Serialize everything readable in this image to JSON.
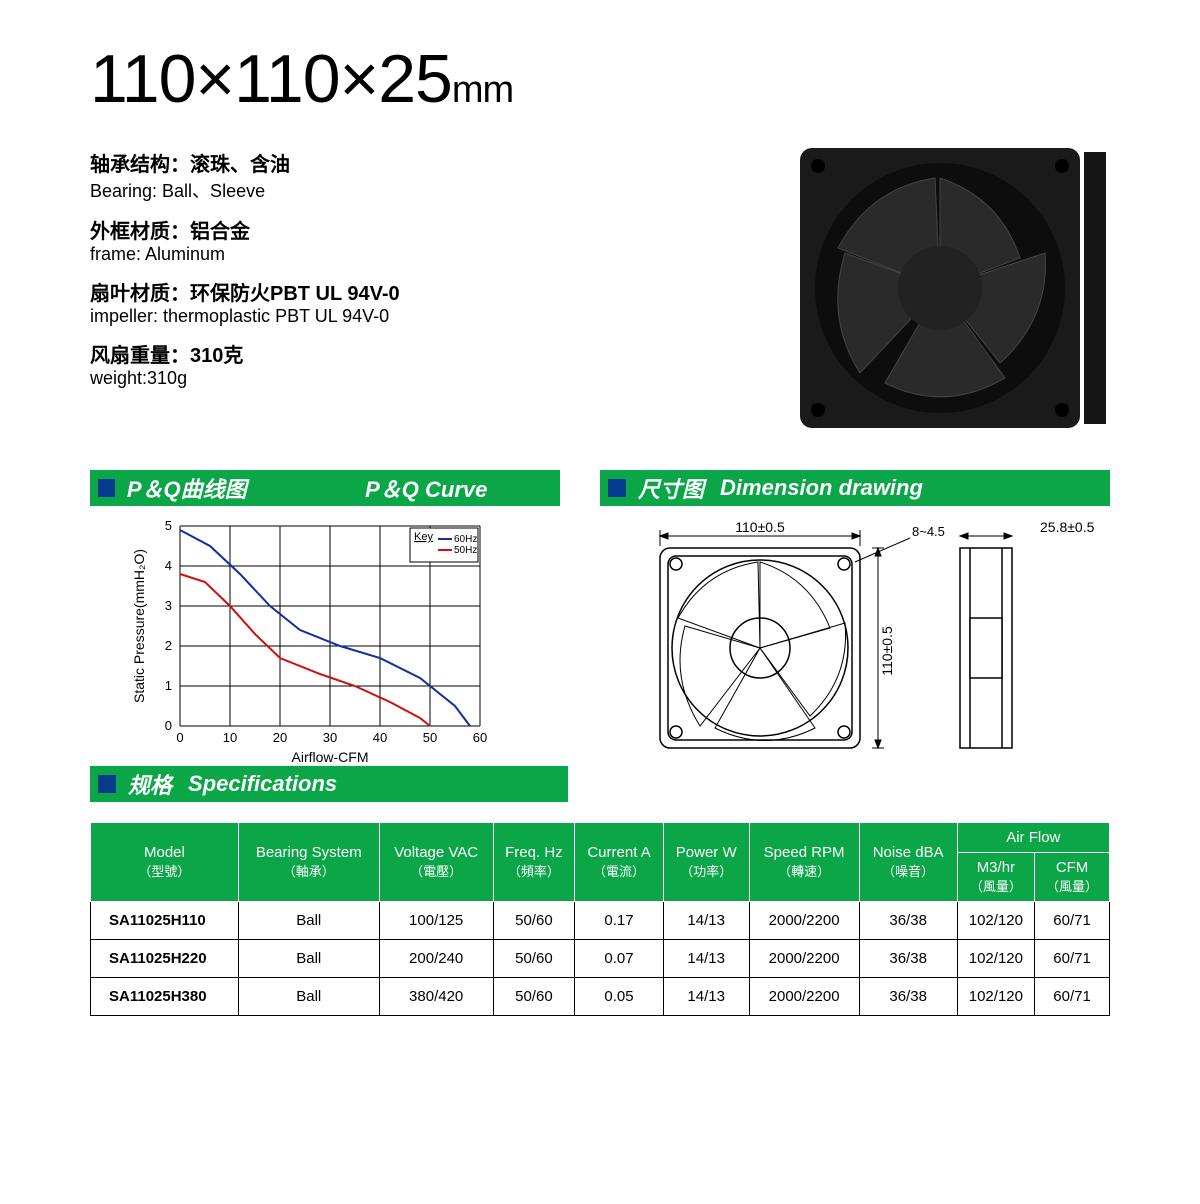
{
  "title": {
    "dims": "110×110×25",
    "unit": "mm"
  },
  "properties": [
    {
      "cn": "轴承结构：滚珠、含油",
      "en": "Bearing: Ball、Sleeve"
    },
    {
      "cn": "外框材质：铝合金",
      "en": "frame: Aluminum"
    },
    {
      "cn": "扇叶材质：环保防火PBT UL 94V-0",
      "en": "impeller: thermoplastic PBT UL 94V-0"
    },
    {
      "cn": "风扇重量：310克",
      "en": "weight:310g"
    }
  ],
  "headers": {
    "pq_cn": "P＆Q曲线图",
    "pq_en": "P＆Q Curve",
    "dim_cn": "尺寸图",
    "dim_en": "Dimension drawing",
    "spec_cn": "规格",
    "spec_en": "Specifications"
  },
  "chart": {
    "ylabel": "Static Pressure(mmH₂O)",
    "xlabel": "Airflow-CFM",
    "key_label": "Key",
    "legend": [
      "60Hz",
      "50Hz"
    ],
    "legend_colors": [
      "#1030a0",
      "#d01010"
    ],
    "xlim": [
      0,
      60
    ],
    "xtick_step": 10,
    "ylim": [
      0,
      5
    ],
    "ytick_step": 1,
    "grid_color": "#000000",
    "series": [
      {
        "name": "60Hz",
        "color": "#1030a0",
        "width": 2,
        "points": [
          [
            0,
            4.9
          ],
          [
            6,
            4.5
          ],
          [
            12,
            3.8
          ],
          [
            18,
            3.0
          ],
          [
            24,
            2.4
          ],
          [
            32,
            2.0
          ],
          [
            40,
            1.7
          ],
          [
            48,
            1.2
          ],
          [
            55,
            0.5
          ],
          [
            58,
            0
          ]
        ]
      },
      {
        "name": "50Hz",
        "color": "#d01010",
        "width": 2,
        "points": [
          [
            0,
            3.8
          ],
          [
            5,
            3.6
          ],
          [
            10,
            3.0
          ],
          [
            15,
            2.3
          ],
          [
            20,
            1.7
          ],
          [
            28,
            1.3
          ],
          [
            35,
            1.0
          ],
          [
            42,
            0.6
          ],
          [
            48,
            0.2
          ],
          [
            50,
            0
          ]
        ]
      }
    ]
  },
  "dimensions": {
    "width": "110±0.5",
    "height": "110±0.5",
    "depth": "25.8±0.5",
    "hole": "8~4.5"
  },
  "table": {
    "columns": [
      {
        "top": "Model",
        "bot": "（型號）"
      },
      {
        "top": "Bearing System",
        "bot": "（軸承）"
      },
      {
        "top": "Voltage VAC",
        "bot": "（電壓）"
      },
      {
        "top": "Freq. Hz",
        "bot": "（頻率）"
      },
      {
        "top": "Current A",
        "bot": "（電流）"
      },
      {
        "top": "Power W",
        "bot": "（功率）"
      },
      {
        "top": "Speed RPM",
        "bot": "（轉速）"
      },
      {
        "top": "Noise dBA",
        "bot": "（噪音）"
      }
    ],
    "airflow_header": "Air Flow",
    "airflow_sub": [
      {
        "top": "M3/hr",
        "bot": "（風量）"
      },
      {
        "top": "CFM",
        "bot": "（風量）"
      }
    ],
    "rows": [
      [
        "SA11025H110",
        "Ball",
        "100/125",
        "50/60",
        "0.17",
        "14/13",
        "2000/2200",
        "36/38",
        "102/120",
        "60/71"
      ],
      [
        "SA11025H220",
        "Ball",
        "200/240",
        "50/60",
        "0.07",
        "14/13",
        "2000/2200",
        "36/38",
        "102/120",
        "60/71"
      ],
      [
        "SA11025H380",
        "Ball",
        "380/420",
        "50/60",
        "0.05",
        "14/13",
        "2000/2200",
        "36/38",
        "102/120",
        "60/71"
      ]
    ]
  },
  "colors": {
    "green": "#0aa647",
    "blue_sq": "#063a8c"
  }
}
